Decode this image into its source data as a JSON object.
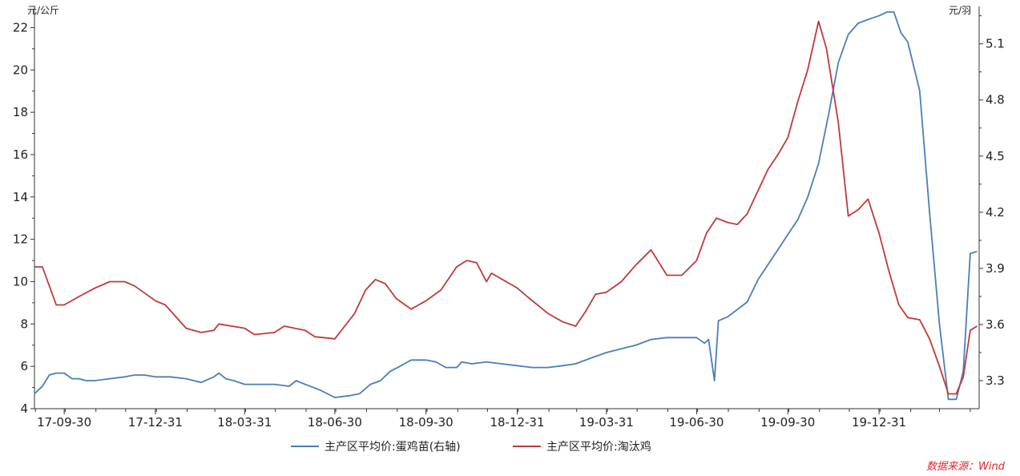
{
  "chart_data": {
    "type": "line",
    "left_unit": "元/公斤",
    "right_unit": "元/羽",
    "source": "数据来源：Wind",
    "x_categories": [
      "17-09-30",
      "17-12-31",
      "18-03-31",
      "18-06-30",
      "18-09-30",
      "18-12-31",
      "19-03-31",
      "19-06-30",
      "19-09-30",
      "19-12-31"
    ],
    "ylim_left": [
      4,
      23
    ],
    "ylim_right": [
      3.15,
      5.3
    ],
    "left_ticks": [
      4,
      6,
      8,
      10,
      12,
      14,
      16,
      18,
      20,
      22
    ],
    "right_ticks": [
      3.3,
      3.6,
      3.9,
      4.2,
      4.5,
      4.8,
      5.1
    ],
    "legend_position": "bottom",
    "grid": false,
    "series": [
      {
        "name": "主产区平均价:蛋鸡苗(右轴)",
        "axis": "right",
        "color": "#4a7ebb",
        "points": [
          [
            "2017-08-31",
            3.23
          ],
          [
            "2017-09-08",
            3.27
          ],
          [
            "2017-09-15",
            3.33
          ],
          [
            "2017-09-22",
            3.34
          ],
          [
            "2017-09-30",
            3.34
          ],
          [
            "2017-10-08",
            3.31
          ],
          [
            "2017-10-15",
            3.31
          ],
          [
            "2017-10-22",
            3.3
          ],
          [
            "2017-10-31",
            3.3
          ],
          [
            "2017-11-15",
            3.31
          ],
          [
            "2017-11-30",
            3.32
          ],
          [
            "2017-12-10",
            3.33
          ],
          [
            "2017-12-20",
            3.33
          ],
          [
            "2017-12-31",
            3.32
          ],
          [
            "2018-01-15",
            3.32
          ],
          [
            "2018-01-31",
            3.31
          ],
          [
            "2018-02-15",
            3.29
          ],
          [
            "2018-02-28",
            3.32
          ],
          [
            "2018-03-05",
            3.34
          ],
          [
            "2018-03-12",
            3.31
          ],
          [
            "2018-03-20",
            3.3
          ],
          [
            "2018-03-31",
            3.28
          ],
          [
            "2018-04-15",
            3.28
          ],
          [
            "2018-04-30",
            3.28
          ],
          [
            "2018-05-15",
            3.27
          ],
          [
            "2018-05-22",
            3.3
          ],
          [
            "2018-05-31",
            3.28
          ],
          [
            "2018-06-15",
            3.25
          ],
          [
            "2018-06-30",
            3.21
          ],
          [
            "2018-07-15",
            3.22
          ],
          [
            "2018-07-25",
            3.23
          ],
          [
            "2018-08-05",
            3.28
          ],
          [
            "2018-08-15",
            3.3
          ],
          [
            "2018-08-25",
            3.35
          ],
          [
            "2018-09-05",
            3.38
          ],
          [
            "2018-09-15",
            3.41
          ],
          [
            "2018-09-30",
            3.41
          ],
          [
            "2018-10-10",
            3.4
          ],
          [
            "2018-10-20",
            3.37
          ],
          [
            "2018-10-31",
            3.37
          ],
          [
            "2018-11-05",
            3.4
          ],
          [
            "2018-11-15",
            3.39
          ],
          [
            "2018-11-30",
            3.4
          ],
          [
            "2018-12-15",
            3.39
          ],
          [
            "2018-12-31",
            3.38
          ],
          [
            "2019-01-15",
            3.37
          ],
          [
            "2019-01-31",
            3.37
          ],
          [
            "2019-02-15",
            3.38
          ],
          [
            "2019-02-28",
            3.39
          ],
          [
            "2019-03-05",
            3.4
          ],
          [
            "2019-03-15",
            3.42
          ],
          [
            "2019-03-31",
            3.45
          ],
          [
            "2019-04-15",
            3.47
          ],
          [
            "2019-04-30",
            3.49
          ],
          [
            "2019-05-15",
            3.52
          ],
          [
            "2019-05-31",
            3.53
          ],
          [
            "2019-06-15",
            3.53
          ],
          [
            "2019-06-30",
            3.53
          ],
          [
            "2019-07-08",
            3.5
          ],
          [
            "2019-07-12",
            3.52
          ],
          [
            "2019-07-18",
            3.3
          ],
          [
            "2019-07-22",
            3.62
          ],
          [
            "2019-07-31",
            3.64
          ],
          [
            "2019-08-10",
            3.68
          ],
          [
            "2019-08-20",
            3.72
          ],
          [
            "2019-08-31",
            3.84
          ],
          [
            "2019-09-10",
            3.92
          ],
          [
            "2019-09-20",
            4.0
          ],
          [
            "2019-09-30",
            4.08
          ],
          [
            "2019-10-10",
            4.16
          ],
          [
            "2019-10-20",
            4.28
          ],
          [
            "2019-10-31",
            4.46
          ],
          [
            "2019-11-10",
            4.72
          ],
          [
            "2019-11-20",
            5.0
          ],
          [
            "2019-11-30",
            5.15
          ],
          [
            "2019-12-10",
            5.21
          ],
          [
            "2019-12-20",
            5.23
          ],
          [
            "2019-12-31",
            5.25
          ],
          [
            "2020-01-08",
            5.27
          ],
          [
            "2020-01-15",
            5.27
          ],
          [
            "2020-01-22",
            5.16
          ],
          [
            "2020-01-29",
            5.11
          ],
          [
            "2020-02-10",
            4.85
          ],
          [
            "2020-02-20",
            4.2
          ],
          [
            "2020-03-01",
            3.6
          ],
          [
            "2020-03-10",
            3.2
          ],
          [
            "2020-03-18",
            3.2
          ],
          [
            "2020-03-25",
            3.35
          ],
          [
            "2020-04-01",
            3.98
          ],
          [
            "2020-04-08",
            3.99
          ]
        ]
      },
      {
        "name": "主产区平均价:淘汰鸡",
        "axis": "left",
        "color": "#c0393b",
        "points": [
          [
            "2017-08-31",
            10.7
          ],
          [
            "2017-09-08",
            10.7
          ],
          [
            "2017-09-22",
            8.9
          ],
          [
            "2017-09-30",
            8.9
          ],
          [
            "2017-10-15",
            9.3
          ],
          [
            "2017-10-31",
            9.7
          ],
          [
            "2017-11-15",
            10.0
          ],
          [
            "2017-11-30",
            10.0
          ],
          [
            "2017-12-10",
            9.8
          ],
          [
            "2017-12-31",
            9.1
          ],
          [
            "2018-01-10",
            8.9
          ],
          [
            "2018-01-31",
            7.8
          ],
          [
            "2018-02-15",
            7.6
          ],
          [
            "2018-02-28",
            7.7
          ],
          [
            "2018-03-05",
            8.0
          ],
          [
            "2018-03-31",
            7.8
          ],
          [
            "2018-04-10",
            7.5
          ],
          [
            "2018-04-30",
            7.6
          ],
          [
            "2018-05-10",
            7.9
          ],
          [
            "2018-05-31",
            7.7
          ],
          [
            "2018-06-10",
            7.4
          ],
          [
            "2018-06-30",
            7.3
          ],
          [
            "2018-07-10",
            7.9
          ],
          [
            "2018-07-20",
            8.5
          ],
          [
            "2018-07-31",
            9.6
          ],
          [
            "2018-08-10",
            10.1
          ],
          [
            "2018-08-20",
            9.9
          ],
          [
            "2018-08-31",
            9.2
          ],
          [
            "2018-09-15",
            8.7
          ],
          [
            "2018-09-30",
            9.1
          ],
          [
            "2018-10-15",
            9.6
          ],
          [
            "2018-10-31",
            10.7
          ],
          [
            "2018-11-10",
            11.0
          ],
          [
            "2018-11-20",
            10.9
          ],
          [
            "2018-11-30",
            10.0
          ],
          [
            "2018-12-05",
            10.4
          ],
          [
            "2018-12-31",
            9.7
          ],
          [
            "2019-01-10",
            9.3
          ],
          [
            "2019-01-31",
            8.5
          ],
          [
            "2019-02-15",
            8.1
          ],
          [
            "2019-02-28",
            7.9
          ],
          [
            "2019-03-10",
            8.6
          ],
          [
            "2019-03-20",
            9.4
          ],
          [
            "2019-03-31",
            9.5
          ],
          [
            "2019-04-15",
            10.0
          ],
          [
            "2019-04-30",
            10.8
          ],
          [
            "2019-05-15",
            11.5
          ],
          [
            "2019-05-31",
            10.3
          ],
          [
            "2019-06-15",
            10.3
          ],
          [
            "2019-06-30",
            11.0
          ],
          [
            "2019-07-10",
            12.3
          ],
          [
            "2019-07-20",
            13.0
          ],
          [
            "2019-07-31",
            12.8
          ],
          [
            "2019-08-10",
            12.7
          ],
          [
            "2019-08-20",
            13.2
          ],
          [
            "2019-08-31",
            14.3
          ],
          [
            "2019-09-10",
            15.3
          ],
          [
            "2019-09-20",
            16.0
          ],
          [
            "2019-09-30",
            16.8
          ],
          [
            "2019-10-10",
            18.5
          ],
          [
            "2019-10-20",
            20.0
          ],
          [
            "2019-10-31",
            22.3
          ],
          [
            "2019-11-08",
            21.0
          ],
          [
            "2019-11-20",
            17.5
          ],
          [
            "2019-11-30",
            13.1
          ],
          [
            "2019-12-10",
            13.4
          ],
          [
            "2019-12-20",
            13.9
          ],
          [
            "2019-12-31",
            12.3
          ],
          [
            "2020-01-10",
            10.5
          ],
          [
            "2020-01-20",
            8.9
          ],
          [
            "2020-01-29",
            8.3
          ],
          [
            "2020-02-10",
            8.2
          ],
          [
            "2020-02-20",
            7.3
          ],
          [
            "2020-03-01",
            6.0
          ],
          [
            "2020-03-10",
            4.7
          ],
          [
            "2020-03-18",
            4.7
          ],
          [
            "2020-03-25",
            5.5
          ],
          [
            "2020-04-01",
            7.7
          ],
          [
            "2020-04-08",
            7.9
          ]
        ]
      }
    ]
  }
}
